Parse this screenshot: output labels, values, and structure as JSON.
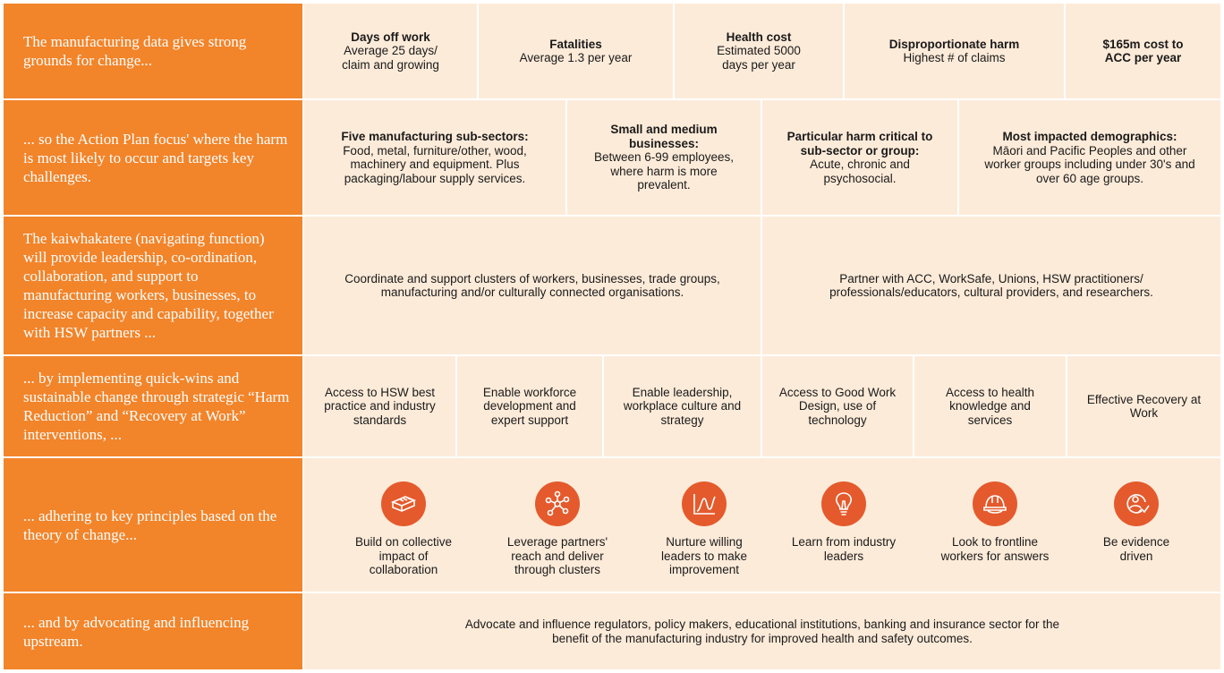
{
  "rows": {
    "data": {
      "label": "The manufacturing data gives strong grounds for change...",
      "items": [
        {
          "title": "Days off work",
          "text": "Average 25 days/ claim and growing"
        },
        {
          "title": "Fatalities",
          "text": "Average 1.3 per year"
        },
        {
          "title": "Health cost",
          "text": "Estimated 5000 days per year"
        },
        {
          "title": "Disproportionate harm",
          "text": "Highest # of claims"
        },
        {
          "title": "$165m cost to ACC per year",
          "text": ""
        }
      ]
    },
    "focus": {
      "label": "... so the Action Plan focus' where the harm is most likely to occur and targets key challenges.",
      "items": [
        {
          "title": "Five manufacturing sub-sectors:",
          "text": "Food, metal, furniture/other, wood, machinery and equipment. Plus packaging/labour supply services."
        },
        {
          "title": "Small and medium businesses:",
          "text": "Between 6-99 employees, where harm is more prevalent."
        },
        {
          "title": "Particular harm critical to sub-sector or group:",
          "text": "Acute, chronic and psychosocial."
        },
        {
          "title": "Most impacted demographics:",
          "text": "Māori and Pacific Peoples and other worker groups including under 30's and over 60 age groups."
        }
      ]
    },
    "kaiwhakatere": {
      "label": "The kaiwhakatere (navigating function) will provide leadership, co-ordination, collaboration, and support to manufacturing workers, businesses, to increase capacity and capability, together with HSW partners ...",
      "items": [
        {
          "text": "Coordinate and support clusters of workers, businesses, trade groups, manufacturing and/or culturally connected organisations."
        },
        {
          "text": "Partner with ACC, WorkSafe, Unions, HSW practitioners/ professionals/educators, cultural providers, and researchers."
        }
      ]
    },
    "interventions": {
      "label": "... by implementing quick-wins and sustainable change through strategic “Harm Reduction” and “Recovery at Work” interventions, ...",
      "items": [
        {
          "text": "Access to HSW best practice and industry standards"
        },
        {
          "text": "Enable workforce development and expert support"
        },
        {
          "text": "Enable leadership, workplace culture and strategy"
        },
        {
          "text": "Access to Good Work Design, use of technology"
        },
        {
          "text": "Access to health knowledge and services"
        },
        {
          "text": "Effective Recovery at Work"
        }
      ]
    },
    "principles": {
      "label": "... adhering to key principles based on the theory of change...",
      "items": [
        {
          "icon": "bricks-icon",
          "text": "Build on collective impact of collaboration"
        },
        {
          "icon": "network-icon",
          "text": "Leverage partners' reach and deliver through clusters"
        },
        {
          "icon": "growth-curve-icon",
          "text": "Nurture willing leaders to make improvement"
        },
        {
          "icon": "lightbulb-icon",
          "text": "Learn from industry leaders"
        },
        {
          "icon": "hard-hat-icon",
          "text": "Look to frontline workers for answers"
        },
        {
          "icon": "evidence-icon",
          "text": "Be evidence driven"
        }
      ]
    },
    "advocacy": {
      "label": "... and by advocating and influencing upstream.",
      "text": "Advocate and influence regulators, policy makers, educational institutions, banking and insurance sector for the benefit of the manufacturing industry for improved health and safety outcomes."
    }
  },
  "colors": {
    "orange": "#f2842a",
    "cell": "#fdebd9",
    "icon": "#e45a2c"
  }
}
